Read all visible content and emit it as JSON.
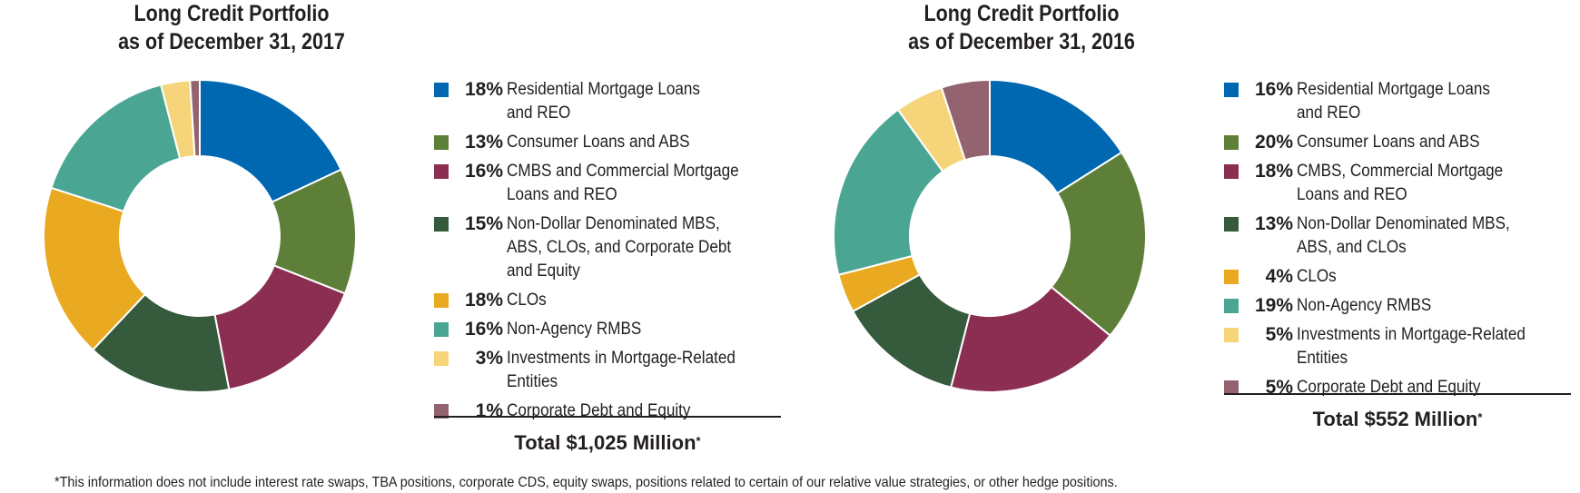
{
  "footnote": "*This information does not include interest rate swaps, TBA positions, corporate CDS, equity swaps, positions related to certain of our relative value strategies, or other hedge positions.",
  "chart_data": [
    {
      "type": "pie",
      "donut": true,
      "title_lines": [
        "Long Credit Portfolio",
        "as of December 31, 2017"
      ],
      "series": [
        {
          "name": "Residential Mortgage Loans and REO",
          "lines": [
            "Residential Mortgage Loans",
            "and REO"
          ],
          "value": 18,
          "label": "18%",
          "color": "#0067b1"
        },
        {
          "name": "Consumer Loans and ABS",
          "lines": [
            "Consumer Loans and ABS"
          ],
          "value": 13,
          "label": "13%",
          "color": "#5e7f38"
        },
        {
          "name": "CMBS and Commercial Mortgage Loans and REO",
          "lines": [
            "CMBS and Commercial Mortgage",
            "Loans and REO"
          ],
          "value": 16,
          "label": "16%",
          "color": "#8b2e51"
        },
        {
          "name": "Non-Dollar Denominated MBS, ABS, CLOs, and Corporate Debt and Equity",
          "lines": [
            "Non-Dollar Denominated MBS,",
            "ABS, CLOs, and Corporate Debt",
            "and Equity"
          ],
          "value": 15,
          "label": "15%",
          "color": "#355a3c"
        },
        {
          "name": "CLOs",
          "lines": [
            "CLOs"
          ],
          "value": 18,
          "label": "18%",
          "color": "#e9aa22"
        },
        {
          "name": "Non-Agency RMBS",
          "lines": [
            "Non-Agency RMBS"
          ],
          "value": 16,
          "label": "16%",
          "color": "#4aa693"
        },
        {
          "name": "Investments in Mortgage-Related Entities",
          "lines": [
            "Investments in Mortgage-Related",
            "Entities"
          ],
          "value": 3,
          "label": "3%",
          "color": "#f6d57a"
        },
        {
          "name": "Corporate Debt and Equity",
          "lines": [
            "Corporate Debt and Equity"
          ],
          "value": 1,
          "label": "1%",
          "color": "#936470"
        }
      ],
      "total_text": "Total $1,025 Million",
      "total_mark": "*"
    },
    {
      "type": "pie",
      "donut": true,
      "title_lines": [
        "Long Credit Portfolio",
        "as of December 31, 2016"
      ],
      "series": [
        {
          "name": "Residential Mortgage Loans and REO",
          "lines": [
            "Residential Mortgage Loans",
            "and REO"
          ],
          "value": 16,
          "label": "16%",
          "color": "#0067b1"
        },
        {
          "name": "Consumer Loans and ABS",
          "lines": [
            "Consumer Loans and ABS"
          ],
          "value": 20,
          "label": "20%",
          "color": "#5e7f38"
        },
        {
          "name": "CMBS, Commercial Mortgage Loans and REO",
          "lines": [
            "CMBS, Commercial Mortgage",
            "Loans and REO"
          ],
          "value": 18,
          "label": "18%",
          "color": "#8b2e51"
        },
        {
          "name": "Non-Dollar Denominated MBS, ABS, and CLOs",
          "lines": [
            "Non-Dollar Denominated MBS,",
            "ABS, and CLOs"
          ],
          "value": 13,
          "label": "13%",
          "color": "#355a3c"
        },
        {
          "name": "CLOs",
          "lines": [
            "CLOs"
          ],
          "value": 4,
          "label": "4%",
          "color": "#e9aa22"
        },
        {
          "name": "Non-Agency RMBS",
          "lines": [
            "Non-Agency RMBS"
          ],
          "value": 19,
          "label": "19%",
          "color": "#4aa693"
        },
        {
          "name": "Investments in Mortgage-Related Entities",
          "lines": [
            "Investments in Mortgage-Related",
            "Entities"
          ],
          "value": 5,
          "label": "5%",
          "color": "#f6d57a"
        },
        {
          "name": "Corporate Debt and Equity",
          "lines": [
            "Corporate Debt and Equity"
          ],
          "value": 5,
          "label": "5%",
          "color": "#936470"
        }
      ],
      "total_text": "Total $552 Million",
      "total_mark": "*"
    }
  ]
}
